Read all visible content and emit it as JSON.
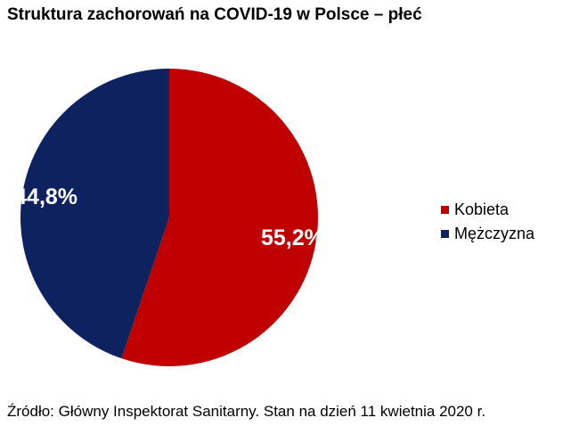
{
  "chart_data": {
    "type": "pie",
    "title": "Struktura zachorowań na COVID-19 w Polsce – płeć",
    "categories": [
      "Kobieta",
      "Mężczyzna"
    ],
    "values": [
      55.2,
      44.8
    ],
    "value_labels": [
      "55,2%",
      "44,8%"
    ],
    "colors": [
      "#c00000",
      "#0e2260"
    ],
    "legend_position": "right",
    "start_angle_deg": 0,
    "direction": "clockwise"
  },
  "source": "Źródło: Główny Inspektorat Sanitarny. Stan na dzień 11 kwietnia 2020 r."
}
